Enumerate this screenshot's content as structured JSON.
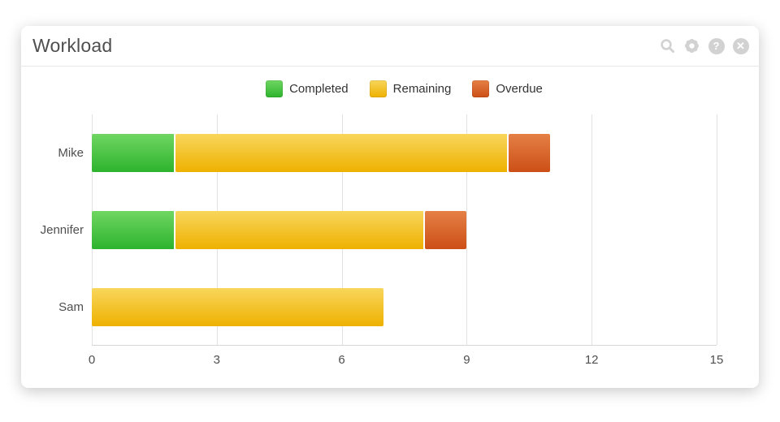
{
  "header": {
    "title": "Workload",
    "icons": [
      {
        "name": "search-icon"
      },
      {
        "name": "settings-icon"
      },
      {
        "name": "help-icon",
        "glyph": "?"
      },
      {
        "name": "close-icon",
        "glyph": "✕"
      }
    ]
  },
  "chart_data": {
    "type": "bar",
    "orientation": "horizontal",
    "stacked": true,
    "title": "Workload",
    "categories": [
      "Mike",
      "Jennifer",
      "Sam"
    ],
    "series": [
      {
        "name": "Completed",
        "values": [
          2,
          2,
          0
        ],
        "color_top": "#6fd662",
        "color_bottom": "#2db32d"
      },
      {
        "name": "Remaining",
        "values": [
          8,
          6,
          7
        ],
        "color_top": "#f8d65c",
        "color_bottom": "#eeb100"
      },
      {
        "name": "Overdue",
        "values": [
          1,
          1,
          0
        ],
        "color_top": "#e58045",
        "color_bottom": "#cc4f17"
      }
    ],
    "totals": {
      "Mike": 11,
      "Jennifer": 9,
      "Sam": 7
    },
    "xlim": [
      0,
      15
    ],
    "xticks": [
      0,
      3,
      6,
      9,
      12,
      15
    ],
    "grid": true,
    "legend_position": "top-center"
  }
}
